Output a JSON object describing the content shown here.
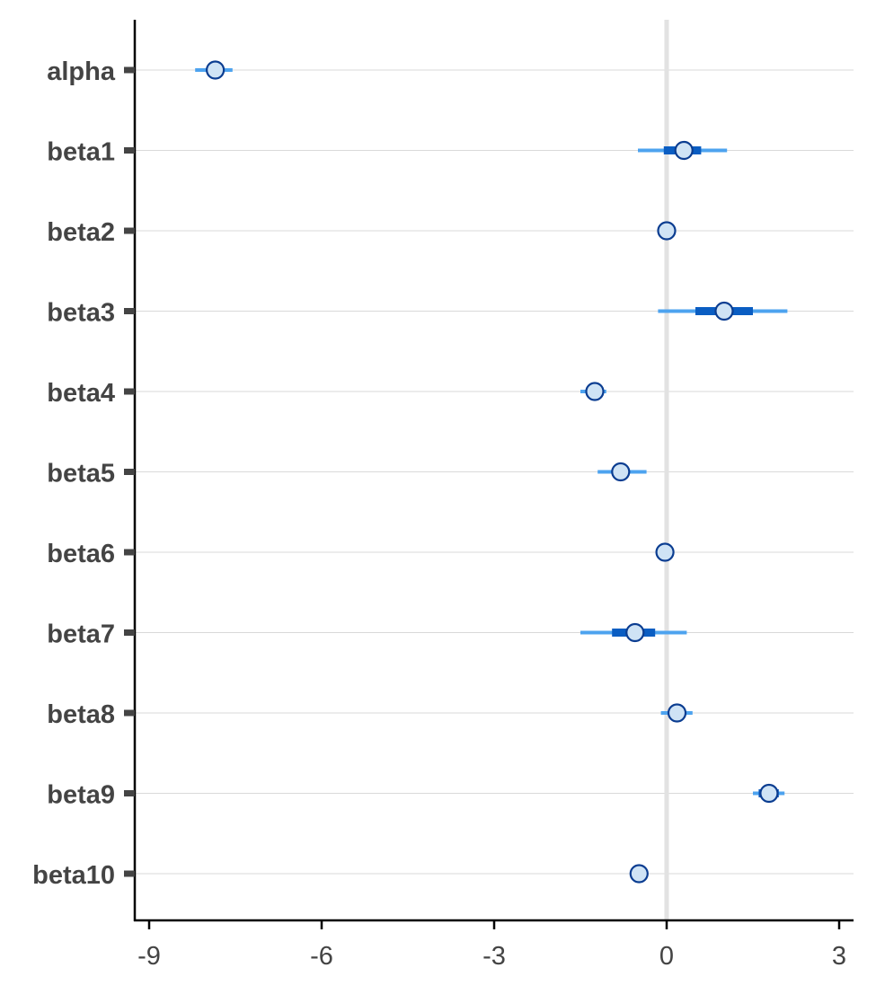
{
  "chart_data": {
    "type": "interval",
    "title": "",
    "xlabel": "",
    "ylabel": "",
    "xlim": [
      -9.25,
      3.25
    ],
    "x_ticks": [
      -9,
      -6,
      -3,
      0,
      3
    ],
    "x_tick_labels": [
      "-9",
      "-6",
      "-3",
      "0",
      "3"
    ],
    "reference_line": 0,
    "grid": "horizontal",
    "legend": "none",
    "parameters": [
      {
        "label": "alpha",
        "median": -7.85,
        "inner": [
          -7.95,
          -7.75
        ],
        "outer": [
          -8.2,
          -7.55
        ]
      },
      {
        "label": "beta1",
        "median": 0.3,
        "inner": [
          -0.05,
          0.6
        ],
        "outer": [
          -0.5,
          1.05
        ]
      },
      {
        "label": "beta2",
        "median": 0.0,
        "inner": [
          -0.05,
          0.05
        ],
        "outer": [
          -0.1,
          0.1
        ]
      },
      {
        "label": "beta3",
        "median": 1.0,
        "inner": [
          0.5,
          1.5
        ],
        "outer": [
          -0.15,
          2.1
        ]
      },
      {
        "label": "beta4",
        "median": -1.25,
        "inner": [
          -1.4,
          -1.1
        ],
        "outer": [
          -1.5,
          -1.05
        ]
      },
      {
        "label": "beta5",
        "median": -0.8,
        "inner": [
          -0.95,
          -0.65
        ],
        "outer": [
          -1.2,
          -0.35
        ]
      },
      {
        "label": "beta6",
        "median": -0.03,
        "inner": [
          -0.08,
          0.02
        ],
        "outer": [
          -0.12,
          0.06
        ]
      },
      {
        "label": "beta7",
        "median": -0.55,
        "inner": [
          -0.95,
          -0.2
        ],
        "outer": [
          -1.5,
          0.35
        ]
      },
      {
        "label": "beta8",
        "median": 0.18,
        "inner": [
          0.05,
          0.3
        ],
        "outer": [
          -0.1,
          0.45
        ]
      },
      {
        "label": "beta9",
        "median": 1.78,
        "inner": [
          1.6,
          1.95
        ],
        "outer": [
          1.5,
          2.05
        ]
      },
      {
        "label": "beta10",
        "median": -0.48,
        "inner": [
          -0.55,
          -0.42
        ],
        "outer": [
          -0.6,
          -0.38
        ]
      }
    ]
  },
  "colors": {
    "outer_interval": "#4da3ef",
    "inner_interval": "#0a5dc2",
    "point_fill": "#cfe3f5",
    "point_stroke": "#0b3d91",
    "grid": "#d9d9d9",
    "reference_line": "#e2e2e2",
    "axis": "#000000",
    "text": "#444444"
  }
}
